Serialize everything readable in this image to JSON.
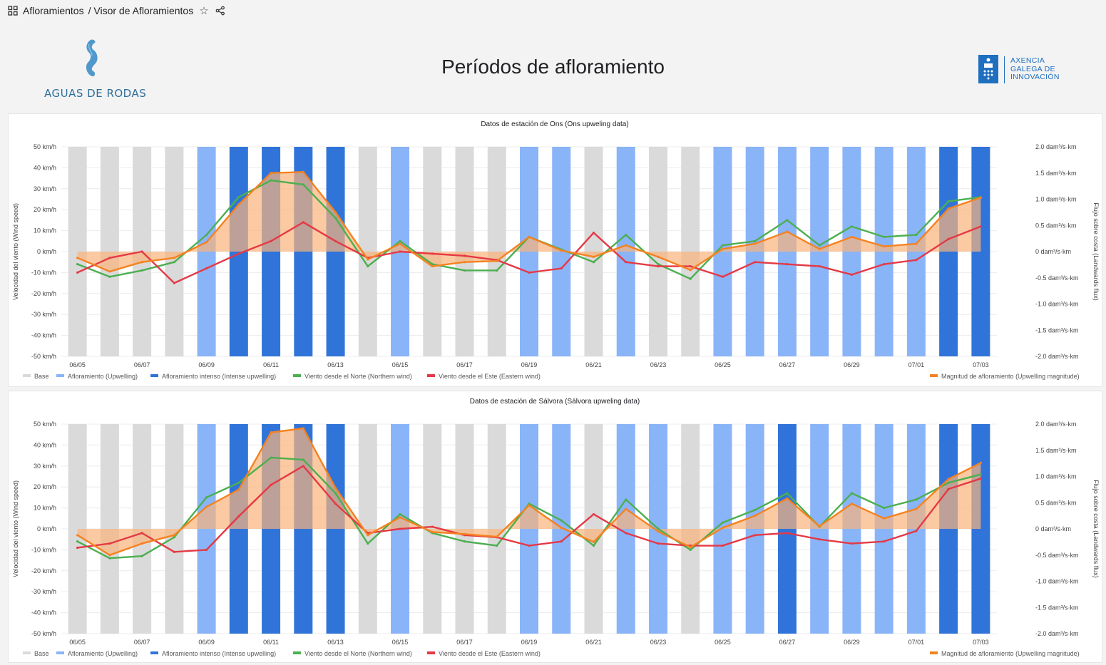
{
  "breadcrumb": {
    "root": "Afloramientos",
    "current": "/ Visor de Afloramientos"
  },
  "icons": {
    "apps": "apps-grid-icon",
    "favorite": "star-icon",
    "share": "share-icon"
  },
  "logos": {
    "left_text": "AGUAS DE RODAS",
    "right_lines": [
      "AXENCIA",
      "GALEGA DE",
      "INNOVACIÓN"
    ]
  },
  "page": {
    "title": "Períodos de afloramiento"
  },
  "colors": {
    "base": "#dadada",
    "upwelling": "#8ab4f8",
    "intense": "#3074d9",
    "north": "#4caf50",
    "east": "#e53945",
    "magnitude": "#f58220",
    "magnitude_fill": "#f9b47a"
  },
  "legend": {
    "base": "Base",
    "upwelling": "Afloramiento (Upwelling)",
    "intense": "Afloramiento intenso (Intense upwelling)",
    "north": "Viento desde el Norte (Northern wind)",
    "east": "Viento desde el Este (Eastern wind)",
    "magnitude": "Magnitud de afloramiento (Upwelling magnitude)"
  },
  "axes": {
    "left_title": "Velocidad del viento (Wind speed)",
    "right_title": "Flujo sobre costa (Landwards flux)",
    "left_ticks": [
      "50 km/h",
      "40 km/h",
      "30 km/h",
      "20 km/h",
      "10 km/h",
      "0 km/h",
      "-10 km/h",
      "-20 km/h",
      "-30 km/h",
      "-40 km/h",
      "-50 km/h"
    ],
    "right_ticks": [
      "2.0 dam³/s·km",
      "1.5 dam³/s·km",
      "1.0 dam³/s·km",
      "0.5 dam³/s·km",
      "0 dam³/s·km",
      "-0.5 dam³/s·km",
      "-1.0 dam³/s·km",
      "-1.5 dam³/s·km",
      "-2.0 dam³/s·km"
    ],
    "x_ticks": [
      "06/05",
      "06/07",
      "06/09",
      "06/11",
      "06/13",
      "06/15",
      "06/17",
      "06/19",
      "06/21",
      "06/23",
      "06/25",
      "06/27",
      "06/29",
      "07/01",
      "07/03"
    ]
  },
  "charts": [
    {
      "title": "Datos de estación de Ons (Ons upweling data)",
      "chart_data": {
        "type": "bar",
        "categories": [
          "06/05",
          "06/06",
          "06/07",
          "06/08",
          "06/09",
          "06/10",
          "06/11",
          "06/12",
          "06/13",
          "06/14",
          "06/15",
          "06/16",
          "06/17",
          "06/18",
          "06/19",
          "06/20",
          "06/21",
          "06/22",
          "06/23",
          "06/24",
          "06/25",
          "06/26",
          "06/27",
          "06/28",
          "06/29",
          "06/30",
          "07/01",
          "07/02",
          "07/03"
        ],
        "classes": [
          "base",
          "base",
          "base",
          "base",
          "upwelling",
          "intense",
          "intense",
          "intense",
          "intense",
          "base",
          "upwelling",
          "base",
          "base",
          "base",
          "upwelling",
          "upwelling",
          "base",
          "upwelling",
          "base",
          "base",
          "upwelling",
          "upwelling",
          "upwelling",
          "upwelling",
          "upwelling",
          "upwelling",
          "upwelling",
          "intense",
          "intense"
        ],
        "series": [
          {
            "name": "Viento desde el Norte (Northern wind)",
            "axis": "left",
            "values": [
              -6,
              -12,
              -9,
              -5,
              8,
              26,
              34,
              32,
              16,
              -7,
              5,
              -6,
              -9,
              -9,
              7,
              1,
              -5,
              8,
              -6,
              -13,
              3,
              5,
              15,
              3,
              12,
              7,
              8,
              24,
              26
            ]
          },
          {
            "name": "Viento desde el Este (Eastern wind)",
            "axis": "left",
            "values": [
              -10,
              -3,
              0,
              -15,
              -8,
              -1,
              5,
              14,
              5,
              -3,
              0,
              -1,
              -2,
              -4,
              -10,
              -8,
              9,
              -5,
              -7,
              -7,
              -12,
              -5,
              -6,
              -7,
              -11,
              -6,
              -4,
              6,
              12
            ]
          },
          {
            "name": "Magnitud de afloramiento (Upwelling magnitude)",
            "axis": "right",
            "values": [
              -0.12,
              -0.38,
              -0.2,
              -0.12,
              0.18,
              0.9,
              1.5,
              1.52,
              0.75,
              -0.15,
              0.15,
              -0.28,
              -0.2,
              -0.18,
              0.28,
              0.02,
              -0.1,
              0.12,
              -0.1,
              -0.35,
              0.05,
              0.15,
              0.38,
              0.05,
              0.28,
              0.1,
              0.15,
              0.82,
              1.03
            ]
          }
        ],
        "ylim_left": [
          -50,
          50
        ],
        "ylim_right": [
          -2.0,
          2.0
        ],
        "ylabel_left": "Velocidad del viento (Wind speed)",
        "ylabel_right": "Flujo sobre costa (Landwards flux)",
        "legend": "bottom"
      }
    },
    {
      "title": "Datos de estación de Sálvora (Sálvora upweling data)",
      "chart_data": {
        "type": "bar",
        "categories": [
          "06/05",
          "06/06",
          "06/07",
          "06/08",
          "06/09",
          "06/10",
          "06/11",
          "06/12",
          "06/13",
          "06/14",
          "06/15",
          "06/16",
          "06/17",
          "06/18",
          "06/19",
          "06/20",
          "06/21",
          "06/22",
          "06/23",
          "06/24",
          "06/25",
          "06/26",
          "06/27",
          "06/28",
          "06/29",
          "06/30",
          "07/01",
          "07/02",
          "07/03"
        ],
        "classes": [
          "base",
          "base",
          "base",
          "base",
          "upwelling",
          "intense",
          "intense",
          "intense",
          "intense",
          "base",
          "upwelling",
          "base",
          "base",
          "base",
          "upwelling",
          "upwelling",
          "base",
          "upwelling",
          "upwelling",
          "base",
          "upwelling",
          "upwelling",
          "intense",
          "upwelling",
          "upwelling",
          "upwelling",
          "upwelling",
          "intense",
          "intense"
        ],
        "series": [
          {
            "name": "Viento desde el Norte (Northern wind)",
            "axis": "left",
            "values": [
              -6,
              -14,
              -13,
              -4,
              15,
              22,
              34,
              33,
              17,
              -7,
              7,
              -2,
              -6,
              -8,
              12,
              4,
              -8,
              14,
              0,
              -10,
              3,
              9,
              17,
              1,
              17,
              10,
              14,
              22,
              26
            ]
          },
          {
            "name": "Viento desde el Este (Eastern wind)",
            "axis": "left",
            "values": [
              -9,
              -7,
              -2,
              -11,
              -10,
              6,
              21,
              30,
              12,
              -2,
              0,
              1,
              -3,
              -4,
              -8,
              -6,
              7,
              -2,
              -7,
              -8,
              -8,
              -3,
              -2,
              -5,
              -7,
              -6,
              -1,
              19,
              24
            ]
          },
          {
            "name": "Magnitud de afloramiento (Upwelling magnitude)",
            "axis": "right",
            "values": [
              -0.12,
              -0.5,
              -0.28,
              -0.12,
              0.42,
              0.75,
              1.84,
              1.92,
              0.78,
              -0.12,
              0.22,
              -0.06,
              -0.1,
              -0.15,
              0.45,
              0.02,
              -0.25,
              0.38,
              -0.05,
              -0.35,
              0.02,
              0.25,
              0.58,
              0.05,
              0.48,
              0.2,
              0.38,
              0.95,
              1.26
            ]
          }
        ],
        "ylim_left": [
          -50,
          50
        ],
        "ylim_right": [
          -2.0,
          2.0
        ],
        "ylabel_left": "Velocidad del viento (Wind speed)",
        "ylabel_right": "Flujo sobre costa (Landwards flux)",
        "legend": "bottom"
      }
    }
  ]
}
